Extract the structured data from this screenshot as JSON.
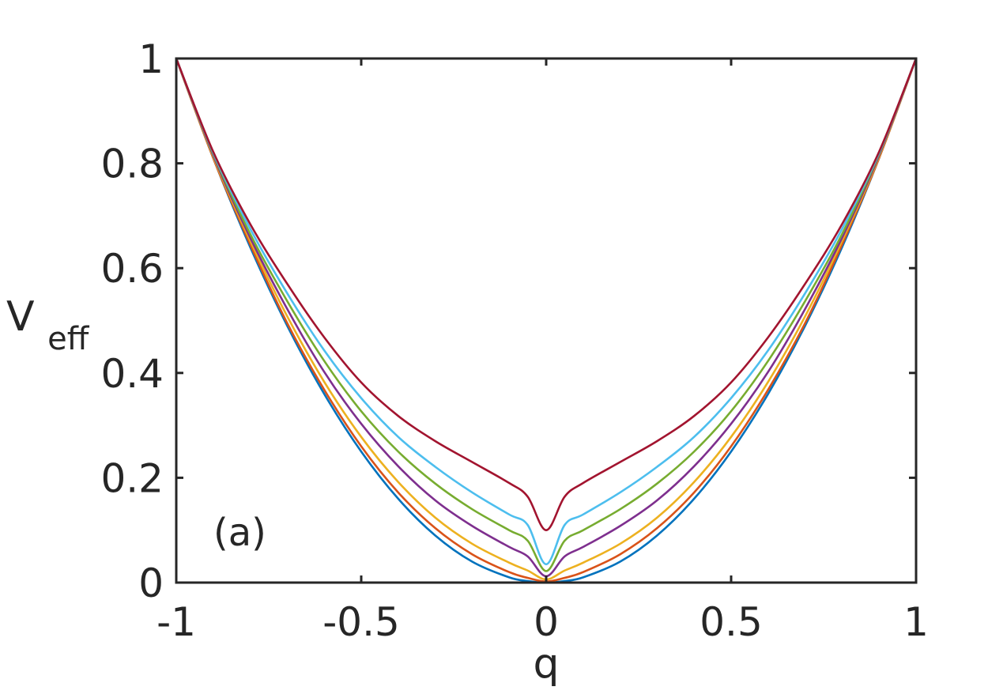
{
  "chart_data": {
    "type": "line",
    "title": "",
    "xlabel": "q",
    "ylabel": {
      "main": "V",
      "sub": "eff"
    },
    "xlim": [
      -1,
      1
    ],
    "ylim": [
      0,
      1
    ],
    "xticks": [
      -1,
      -0.5,
      0,
      0.5,
      1
    ],
    "xtick_labels": [
      "-1",
      "-0.5",
      "0",
      "0.5",
      "1"
    ],
    "yticks": [
      0,
      0.2,
      0.4,
      0.6,
      0.8,
      1
    ],
    "ytick_labels": [
      "0",
      "0.2",
      "0.4",
      "0.6",
      "0.8",
      "1"
    ],
    "grid": false,
    "annotation": "(a)",
    "x": [
      -1,
      -0.9,
      -0.8,
      -0.7,
      -0.6,
      -0.5,
      -0.4,
      -0.3,
      -0.2,
      -0.1,
      -0.05,
      0,
      0.05,
      0.1,
      0.2,
      0.3,
      0.4,
      0.5,
      0.6,
      0.7,
      0.8,
      0.9,
      1
    ],
    "series": [
      {
        "color": "#0072BD",
        "values": [
          1.0,
          0.81,
          0.64,
          0.49,
          0.36,
          0.25,
          0.16,
          0.09,
          0.04,
          0.01,
          0.003,
          0.0,
          0.003,
          0.01,
          0.04,
          0.09,
          0.16,
          0.25,
          0.36,
          0.49,
          0.64,
          0.81,
          1.0
        ]
      },
      {
        "color": "#D95319",
        "values": [
          1.0,
          0.81,
          0.645,
          0.495,
          0.368,
          0.26,
          0.172,
          0.104,
          0.054,
          0.02,
          0.009,
          0.002,
          0.009,
          0.02,
          0.054,
          0.104,
          0.172,
          0.26,
          0.368,
          0.495,
          0.645,
          0.81,
          1.0
        ]
      },
      {
        "color": "#EDB120",
        "values": [
          1.0,
          0.812,
          0.652,
          0.508,
          0.383,
          0.278,
          0.192,
          0.124,
          0.074,
          0.038,
          0.023,
          0.006,
          0.023,
          0.038,
          0.074,
          0.124,
          0.192,
          0.278,
          0.383,
          0.508,
          0.652,
          0.812,
          1.0
        ]
      },
      {
        "color": "#7E2F8E",
        "values": [
          1.0,
          0.815,
          0.658,
          0.522,
          0.402,
          0.303,
          0.222,
          0.157,
          0.108,
          0.068,
          0.05,
          0.012,
          0.05,
          0.068,
          0.108,
          0.157,
          0.222,
          0.303,
          0.402,
          0.522,
          0.658,
          0.815,
          1.0
        ]
      },
      {
        "color": "#77AC30",
        "values": [
          1.0,
          0.818,
          0.665,
          0.537,
          0.423,
          0.327,
          0.25,
          0.189,
          0.14,
          0.1,
          0.08,
          0.022,
          0.08,
          0.1,
          0.14,
          0.189,
          0.25,
          0.327,
          0.423,
          0.537,
          0.665,
          0.818,
          1.0
        ]
      },
      {
        "color": "#4DBEEE",
        "values": [
          1.0,
          0.82,
          0.675,
          0.552,
          0.443,
          0.352,
          0.278,
          0.221,
          0.172,
          0.13,
          0.11,
          0.035,
          0.11,
          0.13,
          0.172,
          0.221,
          0.278,
          0.352,
          0.443,
          0.552,
          0.675,
          0.82,
          1.0
        ]
      },
      {
        "color": "#A2142F",
        "values": [
          1.0,
          0.822,
          0.684,
          0.57,
          0.468,
          0.382,
          0.318,
          0.27,
          0.23,
          0.19,
          0.164,
          0.1,
          0.164,
          0.19,
          0.23,
          0.27,
          0.318,
          0.382,
          0.468,
          0.57,
          0.684,
          0.822,
          1.0
        ]
      }
    ]
  }
}
